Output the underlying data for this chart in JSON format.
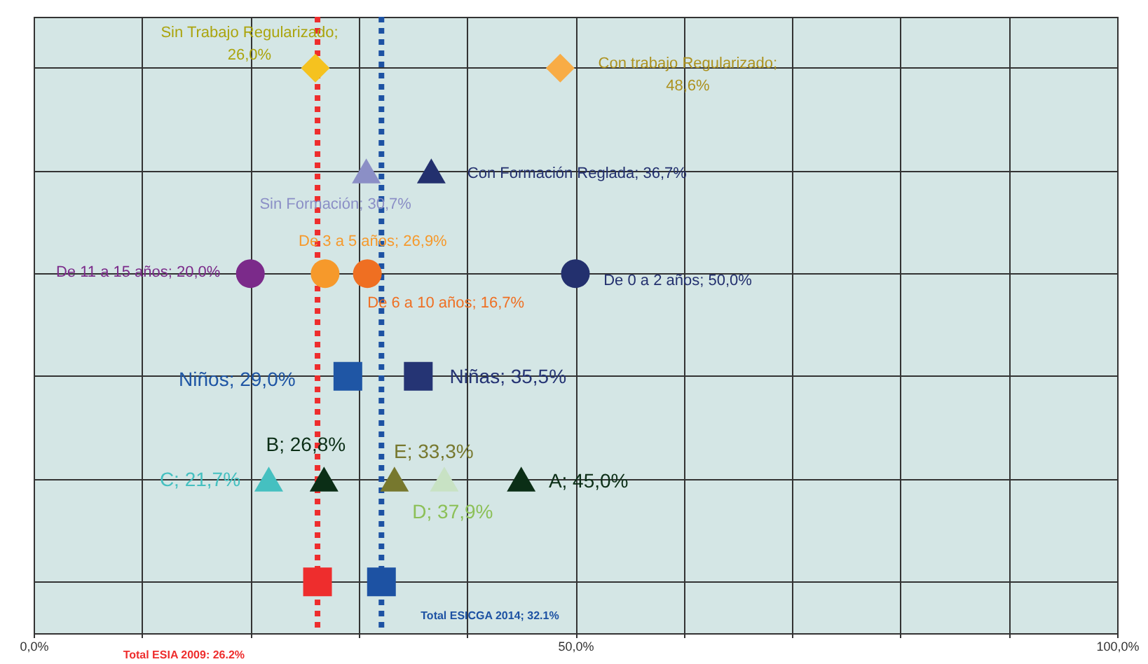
{
  "chart_data": {
    "type": "scatter",
    "orientation": "horizontal",
    "categories": [
      null,
      null,
      null,
      null,
      null,
      null
    ],
    "xlim": [
      0,
      100
    ],
    "xticks": [
      {
        "value": 0,
        "label": "0,0%"
      },
      {
        "value": 10,
        "label": null
      },
      {
        "value": 20,
        "label": null
      },
      {
        "value": 30,
        "label": null
      },
      {
        "value": 40,
        "label": null
      },
      {
        "value": 50,
        "label": "50,0%"
      },
      {
        "value": 60,
        "label": null
      },
      {
        "value": 70,
        "label": null
      },
      {
        "value": 80,
        "label": null
      },
      {
        "value": 90,
        "label": null
      },
      {
        "value": 100,
        "label": "100,0%"
      }
    ],
    "tick_labels": "x",
    "grid": true,
    "legend": false,
    "series": [
      {
        "color": "#f5c21f",
        "marker": "diamond",
        "values": [
          26.0,
          null,
          null,
          null,
          null,
          null
        ]
      },
      {
        "color": "#f8ac45",
        "marker": "diamond",
        "values": [
          48.6,
          null,
          null,
          null,
          null,
          null
        ]
      },
      {
        "color": "#8b8fc6",
        "marker": "triangle",
        "values": [
          null,
          30.7,
          null,
          null,
          null,
          null
        ]
      },
      {
        "color": "#23306e",
        "marker": "triangle",
        "values": [
          null,
          36.7,
          null,
          null,
          null,
          null
        ]
      },
      {
        "color": "#7b2a8a",
        "marker": "circle",
        "values": [
          null,
          null,
          20.0,
          null,
          null,
          null
        ]
      },
      {
        "color": "#f6992b",
        "marker": "circle",
        "values": [
          null,
          null,
          26.9,
          null,
          null,
          null
        ]
      },
      {
        "color": "#ef6f22",
        "marker": "circle",
        "values": [
          null,
          null,
          30.8,
          null,
          null,
          null
        ]
      },
      {
        "color": "#23306e",
        "marker": "circle",
        "values": [
          null,
          null,
          50.0,
          null,
          null,
          null
        ]
      },
      {
        "color": "#1f56a5",
        "marker": "square",
        "values": [
          null,
          null,
          null,
          29.0,
          null,
          null
        ]
      },
      {
        "color": "#253474",
        "marker": "square",
        "values": [
          null,
          null,
          null,
          35.5,
          null,
          null
        ]
      },
      {
        "color": "#0b2e16",
        "marker": "triangle",
        "values": [
          null,
          null,
          null,
          null,
          26.8,
          null
        ]
      },
      {
        "color": "#77782e",
        "marker": "triangle",
        "values": [
          null,
          null,
          null,
          null,
          33.3,
          null
        ]
      },
      {
        "color": "#45c0c0",
        "marker": "triangle",
        "values": [
          null,
          null,
          null,
          null,
          21.7,
          null
        ]
      },
      {
        "color": "#c8e2c4",
        "marker": "triangle",
        "values": [
          null,
          null,
          null,
          null,
          37.9,
          null
        ]
      },
      {
        "color": "#0b2e16",
        "marker": "triangle",
        "values": [
          null,
          null,
          null,
          null,
          45.0,
          null
        ]
      },
      {
        "color": "#ee2d2d",
        "marker": "square",
        "values": [
          null,
          null,
          null,
          null,
          null,
          26.2
        ]
      },
      {
        "color": "#1d52a3",
        "marker": "square",
        "values": [
          null,
          null,
          null,
          null,
          null,
          32.1
        ]
      }
    ],
    "annotations": [
      "Sin Trabajo Regularizado;\n26,0%",
      "Con trabajo Regularizado;\n48,6%",
      "Sin Formación; 30,7%",
      "Con Formación Reglada; 36,7%",
      "De 11 a 15 años; 20,0%",
      "De 3 a 5 años; 26,9%",
      "De 6 a 10 años; 16,7%",
      "De 0 a 2 años; 50,0%",
      "Niños; 29,0%",
      "Niñas; 35,5%",
      "B; 26,8%",
      "E; 33,3%",
      "C; 21,7%",
      "D; 37,9%",
      "A; 45,0%"
    ],
    "ref_lines": [
      {
        "axis": "x",
        "value": 26.2,
        "label": "Total ESIA 2009: 26.2%",
        "color": "#ee2d2d",
        "line_style": "dotted"
      },
      {
        "axis": "x",
        "value": 32.1,
        "label": "Total ESICGA 2014; 32.1%",
        "color": "#1d52a3",
        "line_style": "dotted"
      }
    ]
  }
}
